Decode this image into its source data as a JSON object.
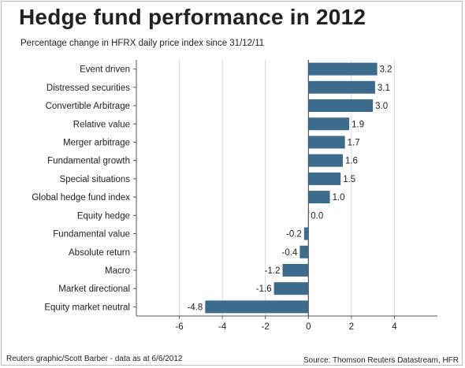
{
  "chart_data": {
    "type": "bar",
    "orientation": "horizontal",
    "title": "Hedge fund performance in 2012",
    "subtitle": "Percentage change in HFRX daily price index since 31/12/11",
    "categories": [
      "Event driven",
      "Distressed securities",
      "Convertible Arbitrage",
      "Relative value",
      "Merger arbitrage",
      "Fundamental growth",
      "Special situations",
      "Global hedge fund index",
      "Equity hedge",
      "Fundamental value",
      "Absolute return",
      "Macro",
      "Market directional",
      "Equity market neutral"
    ],
    "values": [
      3.2,
      3.1,
      3.0,
      1.9,
      1.7,
      1.6,
      1.5,
      1.0,
      0.0,
      -0.2,
      -0.4,
      -1.2,
      -1.6,
      -4.8
    ],
    "value_labels": [
      "3.2",
      "3.1",
      "3.0",
      "1.9",
      "1.7",
      "1.6",
      "1.5",
      "1.0",
      "0.0",
      "-0.2",
      "-0.4",
      "-1.2",
      "-1.6",
      "-4.8"
    ],
    "xlim": [
      -8,
      6
    ],
    "xticks": [
      -6,
      -4,
      -2,
      0,
      2,
      4
    ],
    "xtick_labels": [
      "-6",
      "-4",
      "-2",
      "0",
      "2",
      "4"
    ],
    "grid": "vertical",
    "bar_color": "#3d6b8c"
  },
  "footer": {
    "credit": "Reuters graphic/Scott Barber - data as at 6/6/2012",
    "source": "Source: Thomson Reuters Datastream, HFR"
  }
}
